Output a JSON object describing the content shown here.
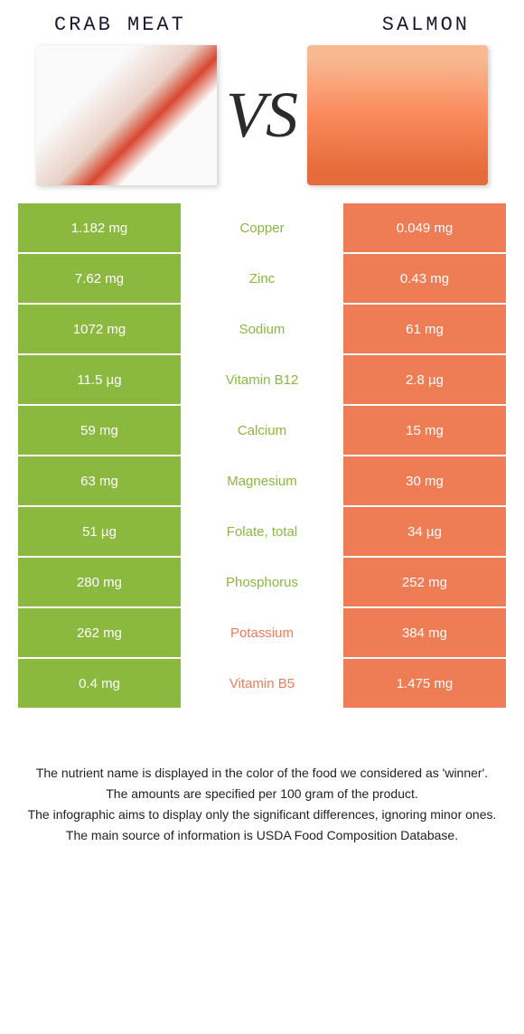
{
  "header": {
    "left_title": "CRAB MEAT",
    "right_title": "SALMON",
    "vs_label": "VS"
  },
  "colors": {
    "left_bg": "#8bb83f",
    "right_bg": "#ee7c55",
    "left_winner_text": "#8bb83f",
    "right_winner_text": "#ee7c55",
    "row_bg_white": "#ffffff"
  },
  "rows": [
    {
      "nutrient": "Copper",
      "left": "1.182 mg",
      "right": "0.049 mg",
      "winner": "left"
    },
    {
      "nutrient": "Zinc",
      "left": "7.62 mg",
      "right": "0.43 mg",
      "winner": "left"
    },
    {
      "nutrient": "Sodium",
      "left": "1072 mg",
      "right": "61 mg",
      "winner": "left"
    },
    {
      "nutrient": "Vitamin B12",
      "left": "11.5 µg",
      "right": "2.8 µg",
      "winner": "left"
    },
    {
      "nutrient": "Calcium",
      "left": "59 mg",
      "right": "15 mg",
      "winner": "left"
    },
    {
      "nutrient": "Magnesium",
      "left": "63 mg",
      "right": "30 mg",
      "winner": "left"
    },
    {
      "nutrient": "Folate, total",
      "left": "51 µg",
      "right": "34 µg",
      "winner": "left"
    },
    {
      "nutrient": "Phosphorus",
      "left": "280 mg",
      "right": "252 mg",
      "winner": "left"
    },
    {
      "nutrient": "Potassium",
      "left": "262 mg",
      "right": "384 mg",
      "winner": "right"
    },
    {
      "nutrient": "Vitamin B5",
      "left": "0.4 mg",
      "right": "1.475 mg",
      "winner": "right"
    }
  ],
  "footnotes": {
    "line1": "The nutrient name is displayed in the color of the food we considered as 'winner'.",
    "line2": "The amounts are specified per 100 gram of the product.",
    "line3": "The infographic aims to display only the significant differences, ignoring minor ones.",
    "line4": "The main source of information is USDA Food Composition Database."
  }
}
